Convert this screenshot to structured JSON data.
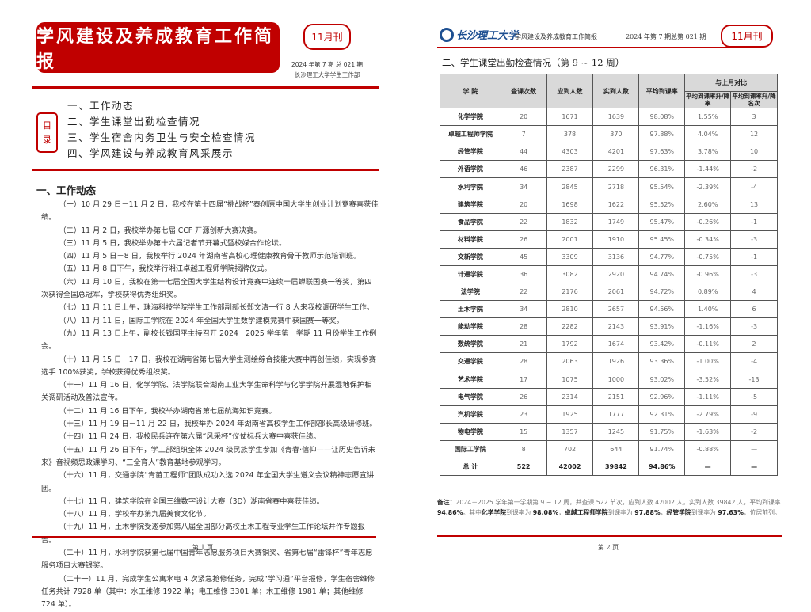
{
  "page1": {
    "title": "学风建设及养成教育工作简报",
    "issue_badge": "11月刊",
    "issue_line": "2024 年第 7 期 总 021 期",
    "publisher": "长沙理工大学学生工作部",
    "toc_label": [
      "目",
      "录"
    ],
    "toc": [
      "一、工作动态",
      "二、学生课堂出勤检查情况",
      "三、学生宿舍内务卫生与安全检查情况",
      "四、学风建设与养成教育风采展示"
    ],
    "section_title": "一、工作动态",
    "items": [
      "（一）10 月 29 日－11 月 2 日，我校在第十四届“挑战杯”泰创原中国大学生创业计划竞赛喜获佳绩。",
      "（二）11 月 2 日，我校举办第七届 CCF 开源创新大赛决赛。",
      "（三）11 月 5 日，我校举办第十六届记者节开幕式暨校媒合作论坛。",
      "（四）11 月 5 日－8 日，我校举行 2024 年湖南省高校心理健康教育骨干教师示范培训班。",
      "（五）11 月 8 日下午，我校举行湘江卓越工程师学院揭牌仪式。",
      "（六）11 月 10 日，我校在第十七届全国大学生结构设计竞赛中连续十届蝉联国赛一等奖，第四次获得全国总冠军，学校获得优秀组织奖。",
      "（七）11 月 11 日上午，珠海科技学院学生工作部副部长郑文清一行 8 人来我校调研学生工作。",
      "（八）11 月 11 日，国际工学院在 2024 年全国大学生数学建模竞赛中获国赛一等奖。",
      "（九）11 月 13 日上午，副校长钱国平主持召开 2024－2025 学年第一学期 11 月份学生工作例会。",
      "（十）11 月 15 日－17 日，我校在湖南省第七届大学生测绘综合技能大赛中再创佳绩，实现参赛选手 100%获奖，学校获得优秀组织奖。",
      "（十一）11 月 16 日，化学学院、法学院联合湖南工业大学生命科学与化学学院开展湿地保护相关调研活动及普法宣传。",
      "（十二）11 月 16 日下午，我校举办湖南省第七届航海知识竞赛。",
      "（十三）11 月 19 日－11 月 22 日，我校举办 2024 年湖南省高校学生工作部部长高级研修班。",
      "（十四）11 月 24 日，我校民兵连在第六届“风采杯”仪仗标兵大赛中喜获佳绩。",
      "（十五）11 月 26 日下午，学工部组织全体 2024 级民族学生参加《青春·信仰——让历史告诉未来》音视频思政课学习、“三全育人”教育基地参观学习。",
      "（十六）11 月，交通学院“青苗工程师”团队成功入选 2024 年全国大学生遵义会议精神志愿宣讲团。",
      "（十七）11 月，建筑学院在全国三维数字设计大赛（3D）湖南省赛中喜获佳绩。",
      "（十八）11 月，学校举办第九届美食文化节。",
      "（十九）11 月，土木学院受邀参加第八届全国部分高校土木工程专业学生工作论坛并作专题报告。",
      "（二十）11 月，水利学院获第七届中国青年志愿服务项目大赛铜奖、省第七届“雷锋杯”青年志愿服务项目大赛银奖。",
      "（二十一）11 月，完成学生公寓水电 4 次紧急抢修任务，完成“学习通”平台报修，学生宿舍维修任务共计 7928 单（其中：水工维修 1922 单；电工维修 3301 单；木工维修 1981 单；其他维修 724 单）。"
    ],
    "page_number": "第 1 页"
  },
  "page2": {
    "logo_text": "长沙理工大学",
    "header_title": "学风建设及养成教育工作简报",
    "header_issue": "2024 年第 7 期总第 021 期",
    "issue_badge": "11月刊",
    "section_title": "二、学生课堂出勤检查情况（第 9 ~ 12 周）",
    "table": {
      "headers": [
        "学 院",
        "查课次数",
        "应到人数",
        "实到人数",
        "平均到课率",
        "与上月对比"
      ],
      "subheaders": [
        "平均到课率升/降率",
        "平均到课率升/降名次"
      ],
      "rows": [
        [
          "化学学院",
          "20",
          "1671",
          "1639",
          "98.08%",
          "1.55%",
          "3"
        ],
        [
          "卓越工程师学院",
          "7",
          "378",
          "370",
          "97.88%",
          "4.04%",
          "12"
        ],
        [
          "经管学院",
          "44",
          "4303",
          "4201",
          "97.63%",
          "3.78%",
          "10"
        ],
        [
          "外语学院",
          "46",
          "2387",
          "2299",
          "96.31%",
          "-1.44%",
          "-2"
        ],
        [
          "水利学院",
          "34",
          "2845",
          "2718",
          "95.54%",
          "-2.39%",
          "-4"
        ],
        [
          "建筑学院",
          "20",
          "1698",
          "1622",
          "95.52%",
          "2.60%",
          "13"
        ],
        [
          "食品学院",
          "22",
          "1832",
          "1749",
          "95.47%",
          "-0.26%",
          "-1"
        ],
        [
          "材料学院",
          "26",
          "2001",
          "1910",
          "95.45%",
          "-0.34%",
          "-3"
        ],
        [
          "文新学院",
          "45",
          "3309",
          "3136",
          "94.77%",
          "-0.75%",
          "-1"
        ],
        [
          "计通学院",
          "36",
          "3082",
          "2920",
          "94.74%",
          "-0.96%",
          "-3"
        ],
        [
          "法学院",
          "22",
          "2176",
          "2061",
          "94.72%",
          "0.89%",
          "4"
        ],
        [
          "土木学院",
          "34",
          "2810",
          "2657",
          "94.56%",
          "1.40%",
          "6"
        ],
        [
          "能动学院",
          "28",
          "2282",
          "2143",
          "93.91%",
          "-1.16%",
          "-3"
        ],
        [
          "数统学院",
          "21",
          "1792",
          "1674",
          "93.42%",
          "-0.11%",
          "2"
        ],
        [
          "交通学院",
          "28",
          "2063",
          "1926",
          "93.36%",
          "-1.00%",
          "-4"
        ],
        [
          "艺术学院",
          "17",
          "1075",
          "1000",
          "93.02%",
          "-3.52%",
          "-13"
        ],
        [
          "电气学院",
          "26",
          "2314",
          "2151",
          "92.96%",
          "-1.11%",
          "-5"
        ],
        [
          "汽机学院",
          "23",
          "1925",
          "1777",
          "92.31%",
          "-2.79%",
          "-9"
        ],
        [
          "物电学院",
          "15",
          "1357",
          "1245",
          "91.75%",
          "-1.63%",
          "-2"
        ],
        [
          "国际工学院",
          "8",
          "702",
          "644",
          "91.74%",
          "-0.88%",
          "—"
        ]
      ],
      "total": [
        "总 计",
        "522",
        "42002",
        "39842",
        "94.86%",
        "—",
        "—"
      ]
    },
    "note": {
      "label": "备注：",
      "t1": "2024－2025 学年第一学期第 9 ~ 12 周，共查课 522 节次，应到人数 42002 人，实到人数 39842 人，平均到课率 ",
      "v1": "94.86%",
      "t2": "。其中",
      "c1": "化学学院",
      "t3": "到课率为 ",
      "r1": "98.08%",
      "t4": "，",
      "c2": "卓越工程师学院",
      "t5": "到课率为 ",
      "r2": "97.88%",
      "t6": "，",
      "c3": "经管学院",
      "t7": "到课率为 ",
      "r3": "97.63%",
      "t8": "，位居前列。"
    },
    "page_number": "第 2 页"
  },
  "colors": {
    "accent": "#c00000",
    "logo": "#1d4f91",
    "table_header": "#d9d9d9"
  }
}
